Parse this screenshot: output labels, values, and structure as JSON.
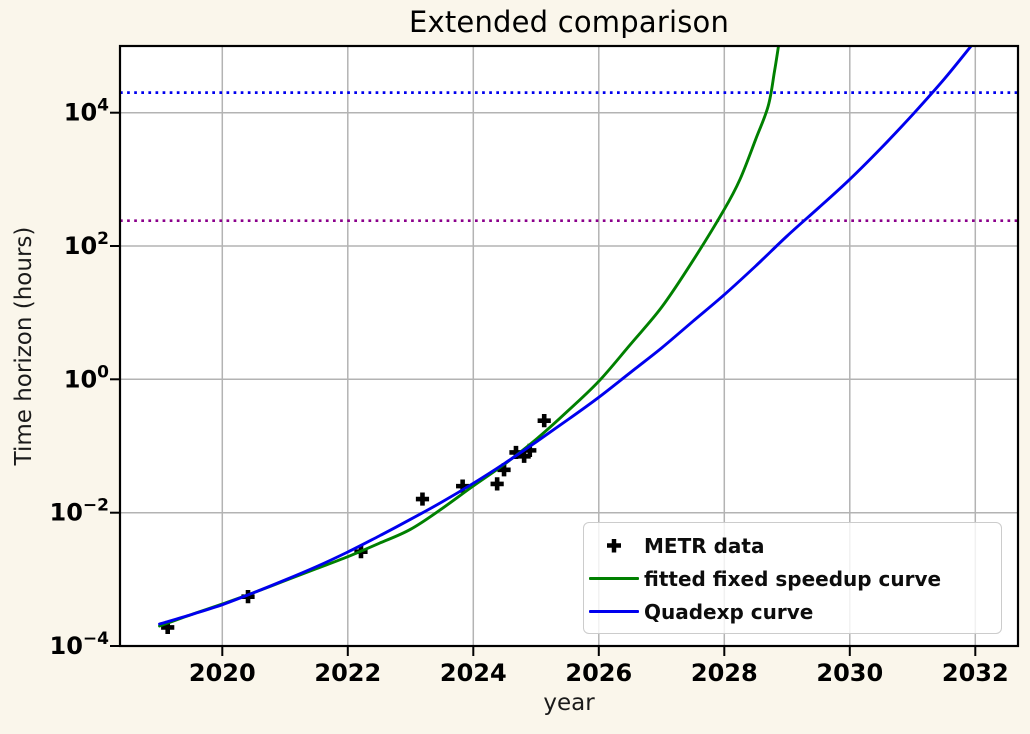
{
  "figure": {
    "title": "Extended comparison",
    "background_color": "#FAF6EB",
    "plot_background_color": "#FFFFFF",
    "grid_color": "#b3b3b3",
    "spine_color": "#000000"
  },
  "axes": {
    "xlabel": "year",
    "ylabel": "Time horizon (hours)"
  },
  "legend": {
    "items": [
      {
        "label": "METR data",
        "swatch": "plus-marker",
        "color": "#000000"
      },
      {
        "label": "fitted fixed speedup curve",
        "swatch": "line",
        "color": "#008000"
      },
      {
        "label": "Quadexp curve",
        "swatch": "line",
        "color": "#0000EE"
      }
    ]
  },
  "chart_data": {
    "type": "line",
    "title": "Extended comparison",
    "xlabel": "year",
    "ylabel": "Time horizon (hours)",
    "x_scale": "linear",
    "y_scale": "log10",
    "xlim": [
      2018.37,
      2032.68
    ],
    "ylim_log10_hours": [
      -4,
      5
    ],
    "x_ticks": [
      2020,
      2022,
      2024,
      2026,
      2028,
      2030,
      2032
    ],
    "y_tick_exponents": [
      4,
      2,
      0,
      -2,
      -4
    ],
    "grid": true,
    "legend_position": "lower right",
    "scatter": {
      "name": "METR data",
      "marker": "plus",
      "color": "#000000",
      "points": [
        {
          "year": 2019.13,
          "hours": 0.00019
        },
        {
          "year": 2020.41,
          "hours": 0.00055
        },
        {
          "year": 2022.21,
          "hours": 0.0026
        },
        {
          "year": 2023.19,
          "hours": 0.016
        },
        {
          "year": 2023.83,
          "hours": 0.025
        },
        {
          "year": 2024.38,
          "hours": 0.027
        },
        {
          "year": 2024.49,
          "hours": 0.044
        },
        {
          "year": 2024.68,
          "hours": 0.08
        },
        {
          "year": 2024.81,
          "hours": 0.07
        },
        {
          "year": 2024.9,
          "hours": 0.086
        },
        {
          "year": 2025.13,
          "hours": 0.24
        }
      ]
    },
    "series": [
      {
        "name": "fitted fixed speedup curve",
        "color": "#008000",
        "style": "solid",
        "x": [
          2019,
          2019.5,
          2020,
          2020.5,
          2021,
          2021.5,
          2022,
          2022.5,
          2023,
          2023.5,
          2024,
          2024.5,
          2025,
          2025.5,
          2026,
          2026.5,
          2027,
          2027.5,
          2028,
          2028.25,
          2028.5,
          2028.7,
          2028.8,
          2028.88
        ],
        "log10_hours": [
          -3.7,
          -3.53,
          -3.37,
          -3.2,
          -3.02,
          -2.84,
          -2.66,
          -2.46,
          -2.25,
          -1.94,
          -1.6,
          -1.27,
          -0.9,
          -0.48,
          -0.03,
          0.52,
          1.08,
          1.78,
          2.55,
          3.0,
          3.6,
          4.1,
          4.62,
          5.1
        ]
      },
      {
        "name": "Quadexp curve",
        "color": "#0000EE",
        "style": "solid",
        "x": [
          2019,
          2019.5,
          2020,
          2020.5,
          2021,
          2021.5,
          2022,
          2022.5,
          2023,
          2023.5,
          2024,
          2024.5,
          2025,
          2025.5,
          2026,
          2026.5,
          2027,
          2027.5,
          2028,
          2028.5,
          2029,
          2029.5,
          2030,
          2030.5,
          2031,
          2031.5,
          2031.95
        ],
        "log10_hours": [
          -3.67,
          -3.53,
          -3.38,
          -3.2,
          -3.01,
          -2.81,
          -2.59,
          -2.35,
          -2.1,
          -1.84,
          -1.56,
          -1.26,
          -0.94,
          -0.61,
          -0.27,
          0.1,
          0.47,
          0.87,
          1.27,
          1.7,
          2.15,
          2.57,
          3.0,
          3.47,
          3.97,
          4.5,
          5.02
        ]
      }
    ],
    "hlines": [
      {
        "hours": 20000,
        "color": "#0000EE",
        "style": "dotted"
      },
      {
        "hours": 240,
        "color": "#8B008B",
        "style": "dotted"
      }
    ]
  }
}
